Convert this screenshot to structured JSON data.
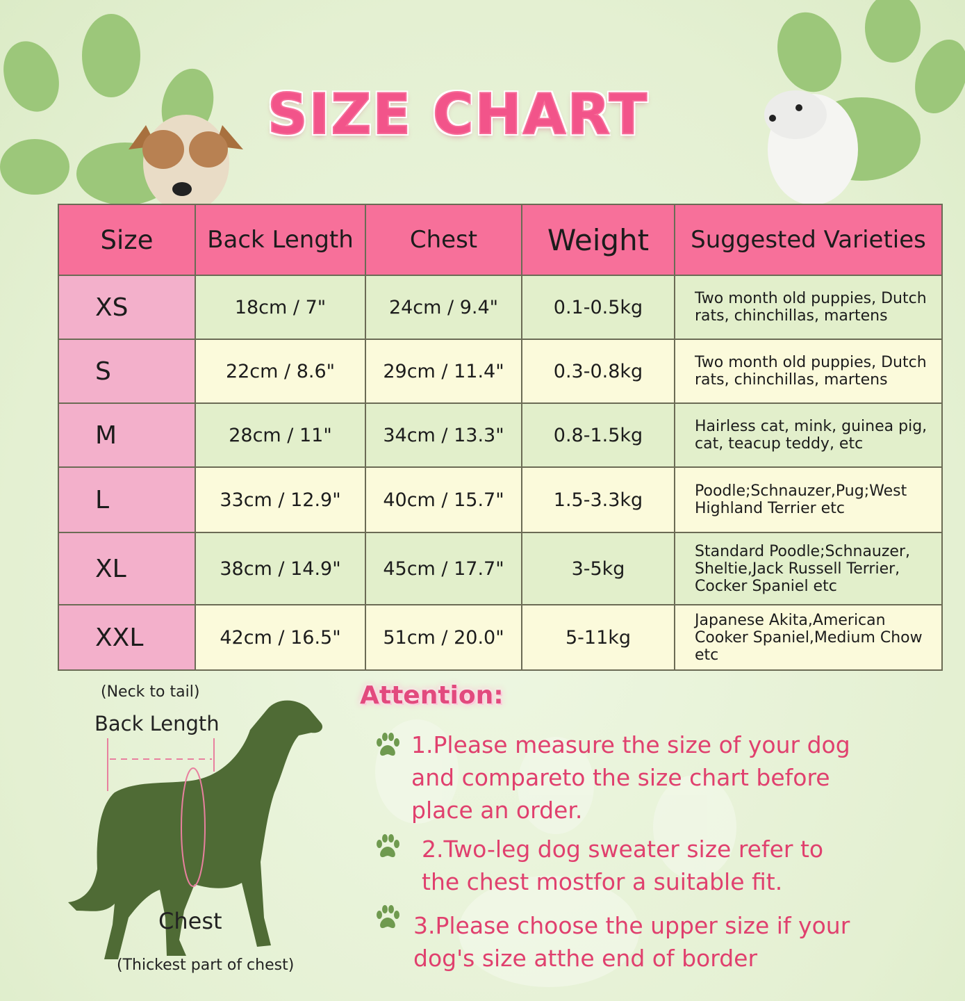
{
  "title": "SIZE CHART",
  "colors": {
    "header": "#f7709a",
    "size_column": "#f3b0cb",
    "row_green": "#e2efcb",
    "row_cream": "#fbfadb",
    "title": "#f2548a",
    "paw": "#9cc77a",
    "dog_silhouette": "#4f6b35",
    "attention_text": "#e0406e"
  },
  "table": {
    "headers": [
      "Size",
      "Back Length",
      "Chest",
      "Weight",
      "Suggested Varieties"
    ],
    "rows": [
      {
        "size": "XS",
        "back_length": "18cm / 7\"",
        "chest": "24cm / 9.4\"",
        "weight": "0.1-0.5kg",
        "varieties": "Two month old puppies, Dutch rats, chinchillas, martens"
      },
      {
        "size": "S",
        "back_length": "22cm / 8.6\"",
        "chest": "29cm / 11.4\"",
        "weight": "0.3-0.8kg",
        "varieties": "Two month old puppies, Dutch rats, chinchillas, martens"
      },
      {
        "size": "M",
        "back_length": "28cm / 11\"",
        "chest": "34cm / 13.3\"",
        "weight": "0.8-1.5kg",
        "varieties": "Hairless cat, mink, guinea pig, cat, teacup teddy, etc"
      },
      {
        "size": "L",
        "back_length": "33cm / 12.9\"",
        "chest": "40cm / 15.7\"",
        "weight": "1.5-3.3kg",
        "varieties": "Poodle;Schnauzer,Pug;West Highland Terrier etc"
      },
      {
        "size": "XL",
        "back_length": "38cm / 14.9\"",
        "chest": "45cm / 17.7\"",
        "weight": "3-5kg",
        "varieties": "Standard Poodle;Schnauzer, Sheltie,Jack Russell Terrier, Cocker Spaniel etc"
      },
      {
        "size": "XXL",
        "back_length": "42cm / 16.5\"",
        "chest": "51cm / 20.0\"",
        "weight": "5-11kg",
        "varieties": "Japanese Akita,American Cooker Spaniel,Medium Chow etc"
      }
    ]
  },
  "diagram": {
    "back_note": "(Neck to tail)",
    "back_label": "Back Length",
    "chest_label": "Chest",
    "chest_note": "(Thickest part of chest)"
  },
  "attention": {
    "title": "Attention:",
    "icon": "paw-icon",
    "items": [
      "1.Please measure the size of your dog and compareto the size chart before place an order.",
      "2.Two-leg dog sweater size refer to the chest mostfor a suitable fit.",
      "3.Please choose the upper size if your dog's size atthe end of border"
    ]
  }
}
